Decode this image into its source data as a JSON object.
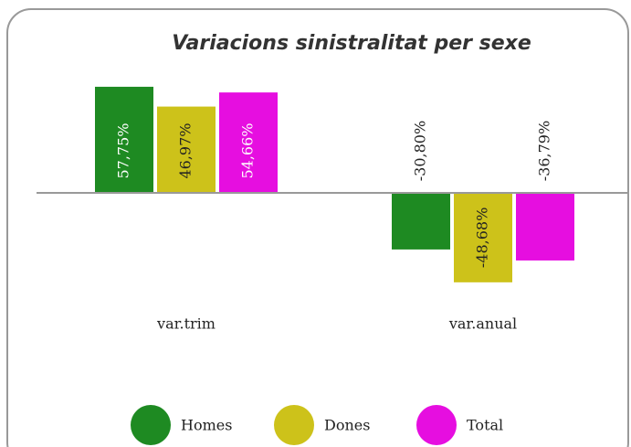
{
  "chart_data": {
    "type": "bar",
    "title": "Variacions sinistralitat per sexe",
    "categories": [
      "var.trim",
      "var.anual"
    ],
    "series": [
      {
        "name": "Homes",
        "color": "#1e8a22",
        "values": [
          57.75,
          -30.8
        ],
        "value_labels": [
          "57,75%",
          "-30,80%"
        ]
      },
      {
        "name": "Dones",
        "color": "#cdc21a",
        "values": [
          46.97,
          -48.68
        ],
        "value_labels": [
          "46,97%",
          "-48,68%"
        ]
      },
      {
        "name": "Total",
        "color": "#e60ee0",
        "values": [
          54.66,
          -36.79
        ],
        "value_labels": [
          "54,66%",
          "-36,79%"
        ]
      }
    ],
    "legend": "bottom"
  }
}
